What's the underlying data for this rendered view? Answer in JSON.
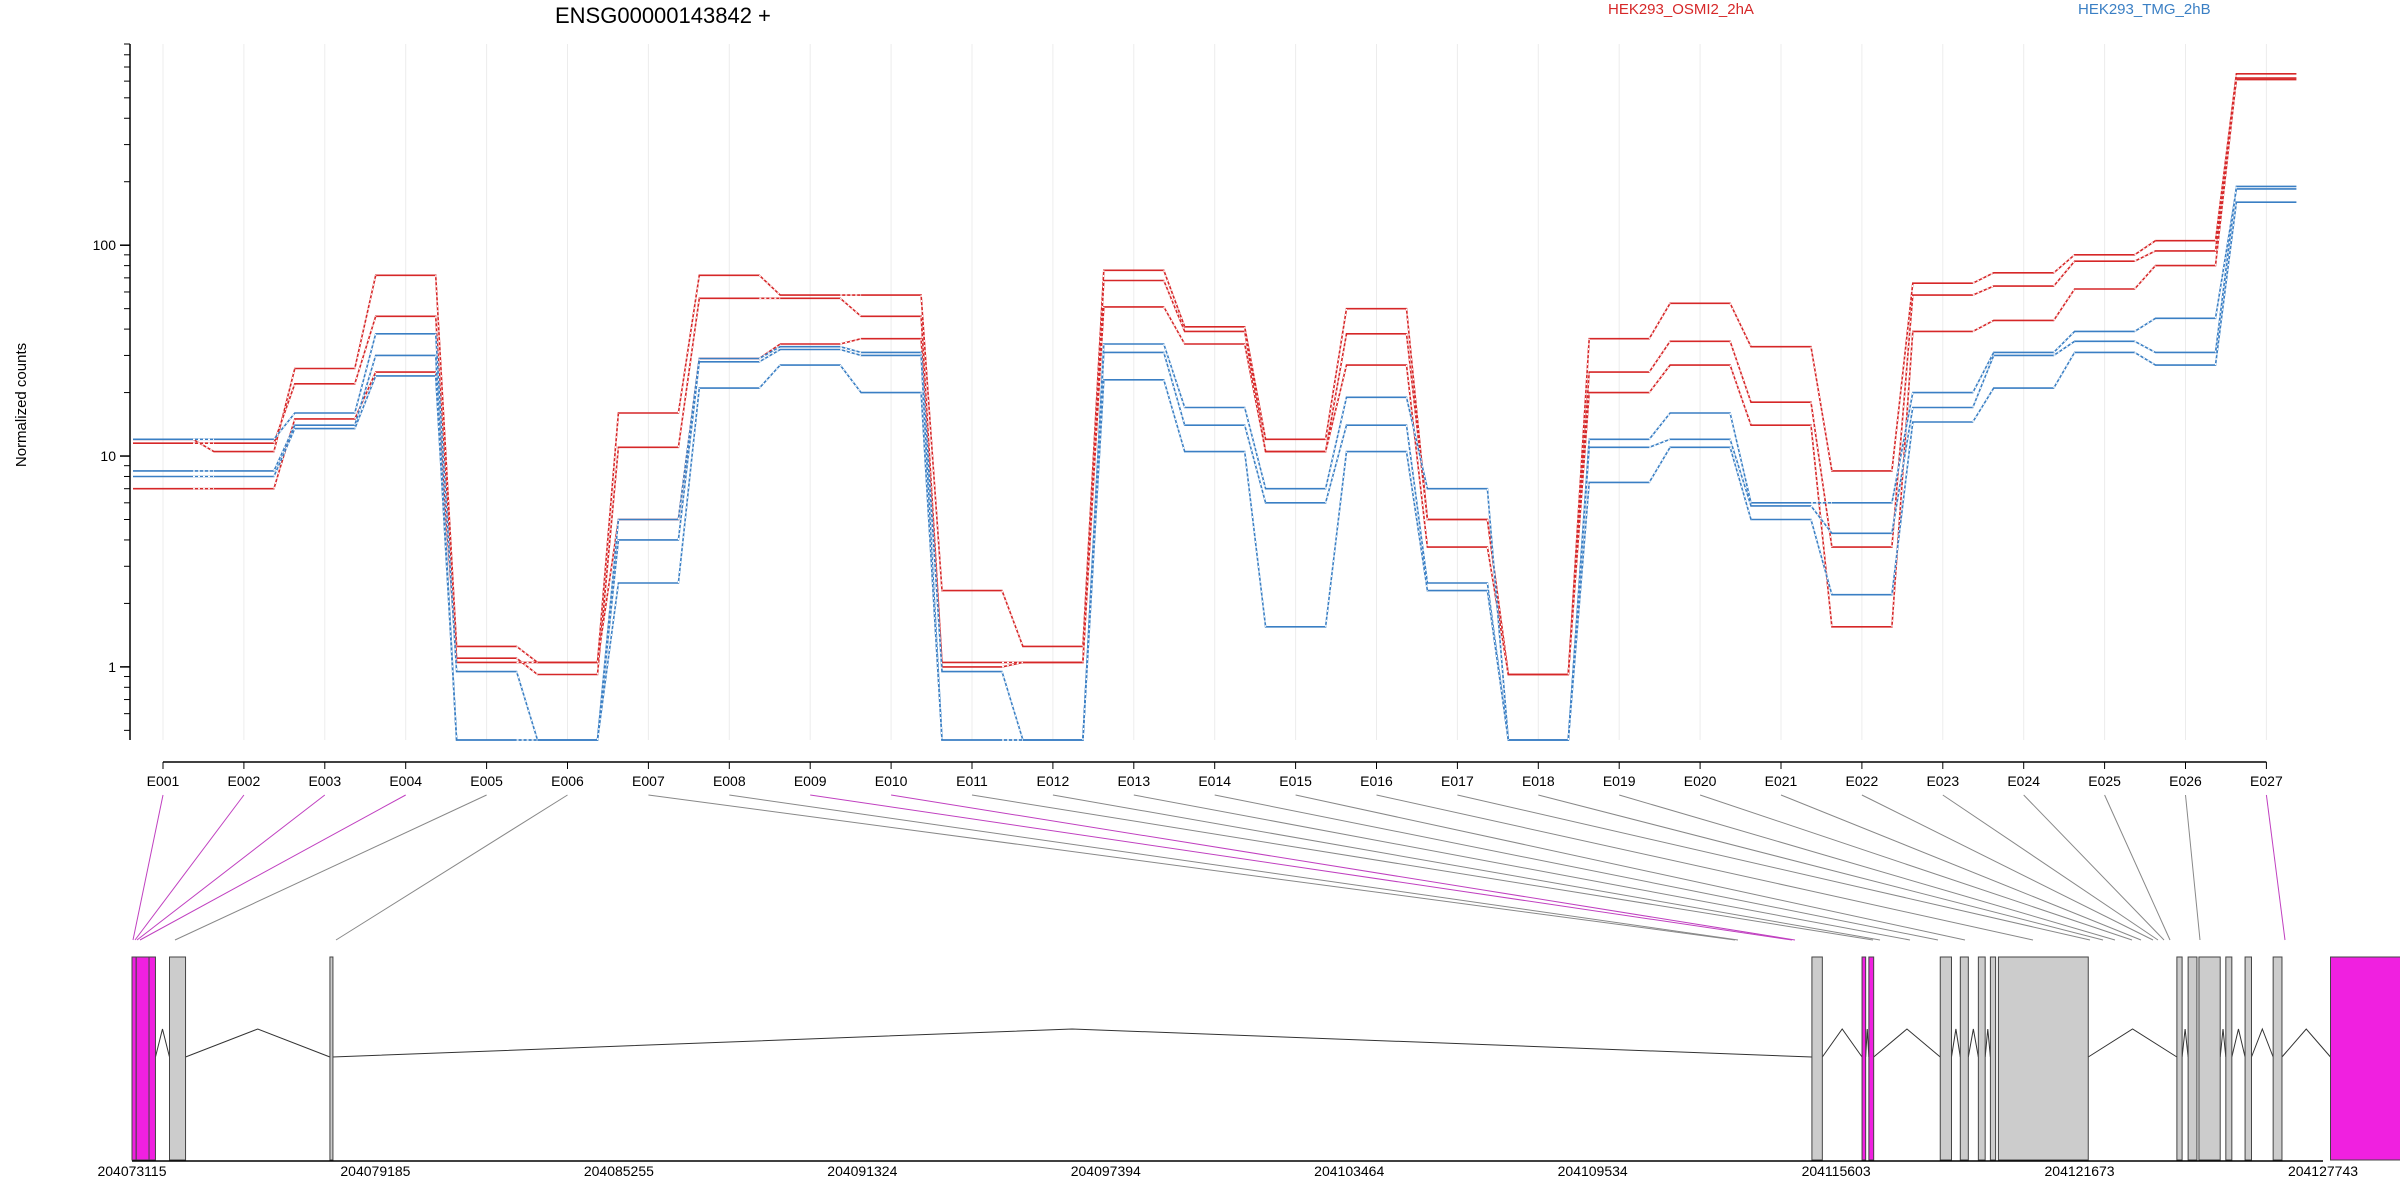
{
  "chart_data": {
    "type": "line",
    "title": "ENSG00000143842 +",
    "ylabel": "Normalized counts",
    "y_scale": "log",
    "ylim": [
      0.45,
      900
    ],
    "y_ticks": [
      1,
      10,
      100
    ],
    "y_tick_labels": [
      "1",
      "10",
      "100"
    ],
    "grid": "vertical lines at exons",
    "legend_placement": "top",
    "categories": [
      "E001",
      "E002",
      "E003",
      "E004",
      "E005",
      "E006",
      "E007",
      "E008",
      "E009",
      "E010",
      "E011",
      "E012",
      "E013",
      "E014",
      "E015",
      "E016",
      "E017",
      "E018",
      "E019",
      "E020",
      "E021",
      "E022",
      "E023",
      "E024",
      "E025",
      "E026",
      "E027"
    ],
    "colors": {
      "HEK293_OSMI2_2hA": "#d62728",
      "HEK293_TMG_2hB": "#3a7fc4"
    },
    "series": [
      {
        "name": "HEK293_OSMI2_2hA",
        "values": [
          12,
          10.5,
          26,
          72,
          1.25,
          1.05,
          16,
          72,
          58,
          58,
          2.3,
          1.25,
          76,
          41,
          12,
          50,
          5,
          0.92,
          36,
          53,
          33,
          8.5,
          66,
          74,
          90,
          105,
          650
        ]
      },
      {
        "group": "HEK293_OSMI2_2hA",
        "values": [
          11.5,
          11.5,
          22,
          46,
          1.1,
          0.92,
          11,
          56,
          56,
          46,
          1.05,
          1.05,
          68,
          39,
          10.5,
          38,
          5,
          0.92,
          25,
          35,
          18,
          3.7,
          58,
          64,
          84,
          94,
          610
        ]
      },
      {
        "group": "HEK293_OSMI2_2hA",
        "values": [
          7,
          7,
          15,
          25,
          1.05,
          1.05,
          5,
          29,
          34,
          36,
          1.0,
          1.05,
          51,
          34,
          10.5,
          27,
          3.7,
          0.92,
          20,
          27,
          14,
          1.55,
          39,
          44,
          62,
          80,
          620
        ]
      },
      {
        "group": "HEK293_TMG_2hB",
        "values": [
          12,
          12,
          16,
          38,
          0.95,
          0.45,
          5,
          29,
          33,
          31,
          0.95,
          0.45,
          34,
          17,
          7,
          19,
          7,
          0.45,
          12,
          16,
          6,
          6,
          20,
          31,
          39,
          45,
          185
        ]
      },
      {
        "group": "HEK293_TMG_2hB",
        "values": [
          8.5,
          8.5,
          14,
          30,
          0.45,
          0.45,
          4,
          28,
          32,
          30,
          0.45,
          0.45,
          31,
          14,
          6,
          14,
          2.5,
          0.45,
          11,
          12,
          5.8,
          4.3,
          17,
          30,
          35,
          31,
          190
        ]
      },
      {
        "group": "HEK293_TMG_2hB",
        "values": [
          8,
          8,
          13.5,
          24,
          0.45,
          0.45,
          2.5,
          21,
          27,
          20,
          0.45,
          0.45,
          23,
          10.5,
          1.55,
          10.5,
          2.3,
          0.45,
          7.5,
          11,
          5,
          2.2,
          14.5,
          21,
          31,
          27,
          160
        ]
      }
    ],
    "genomic_axis": {
      "tick_labels": [
        "204073115",
        "204079185",
        "204085255",
        "204091324",
        "204097394",
        "204103464",
        "204109534",
        "204115603",
        "204121673",
        "204127743"
      ]
    },
    "exon_model_colors": {
      "normal": "#cccccc",
      "highlighted": "#f020e0"
    },
    "highlighted_exons": [
      "E001",
      "E002",
      "E003",
      "E004",
      "E009",
      "E010",
      "E027"
    ]
  }
}
